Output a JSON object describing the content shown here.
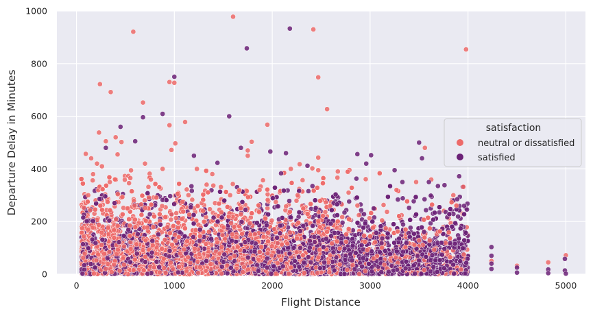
{
  "chart_data": {
    "type": "scatter",
    "title": "",
    "xlabel": "Flight Distance",
    "ylabel": "Departure Delay in Minutes",
    "xlim": [
      -200,
      5200
    ],
    "ylim": [
      0,
      1000
    ],
    "xticks": [
      0,
      1000,
      2000,
      3000,
      4000,
      5000
    ],
    "yticks": [
      0,
      200,
      400,
      600,
      800,
      1000
    ],
    "grid": true,
    "legend": {
      "title": "satisfaction",
      "placement": "center-right",
      "entries": [
        {
          "label": "neutral or dissatisfied",
          "color": "#ed6a69"
        },
        {
          "label": "satisfied",
          "color": "#6b2177"
        }
      ]
    },
    "series": [
      {
        "name": "neutral or dissatisfied",
        "color": "#ed6a69",
        "points": [
          [
            1600,
            978
          ],
          [
            580,
            921
          ],
          [
            2420,
            930
          ],
          [
            240,
            722
          ],
          [
            350,
            692
          ],
          [
            950,
            730
          ],
          [
            1000,
            727
          ],
          [
            2470,
            748
          ],
          [
            2560,
            627
          ],
          [
            680,
            652
          ],
          [
            950,
            566
          ],
          [
            1110,
            578
          ],
          [
            1950,
            568
          ],
          [
            230,
            538
          ],
          [
            400,
            520
          ],
          [
            300,
            505
          ],
          [
            460,
            502
          ],
          [
            1790,
            503
          ],
          [
            1010,
            497
          ],
          [
            3980,
            854
          ],
          [
            3560,
            480
          ],
          [
            95,
            457
          ],
          [
            150,
            440
          ],
          [
            420,
            455
          ],
          [
            970,
            472
          ],
          [
            1750,
            470
          ],
          [
            1750,
            450
          ],
          [
            2470,
            443
          ],
          [
            2190,
            400
          ],
          [
            2280,
            418
          ],
          [
            2410,
            402
          ],
          [
            700,
            420
          ],
          [
            880,
            400
          ],
          [
            210,
            420
          ],
          [
            260,
            410
          ],
          [
            1230,
            400
          ],
          [
            2470,
            395
          ],
          [
            2670,
            390
          ],
          [
            170,
            380
          ],
          [
            550,
            365
          ],
          [
            340,
            350
          ],
          [
            760,
            360
          ],
          [
            1330,
            340
          ],
          [
            1570,
            300
          ],
          [
            1870,
            320
          ],
          [
            2260,
            300
          ],
          [
            2780,
            310
          ],
          [
            3270,
            320
          ],
          [
            3470,
            350
          ],
          [
            3850,
            300
          ],
          [
            4820,
            45
          ],
          [
            5000,
            72
          ],
          [
            4500,
            32
          ],
          [
            4240,
            50
          ],
          [
            120,
            300
          ]
        ],
        "band": {
          "x": [
            50,
            4000
          ],
          "density": 4200,
          "yscale": 95,
          "fade_x": 2700
        }
      },
      {
        "name": "satisfied",
        "color": "#6b2177",
        "points": [
          [
            1000,
            750
          ],
          [
            2180,
            933
          ],
          [
            1740,
            858
          ],
          [
            880,
            609
          ],
          [
            680,
            596
          ],
          [
            1560,
            600
          ],
          [
            450,
            560
          ],
          [
            600,
            505
          ],
          [
            1980,
            466
          ],
          [
            2140,
            460
          ],
          [
            2360,
            412
          ],
          [
            3500,
            500
          ],
          [
            3530,
            440
          ],
          [
            2870,
            456
          ],
          [
            3010,
            452
          ],
          [
            2960,
            420
          ],
          [
            1200,
            450
          ],
          [
            1440,
            423
          ],
          [
            3910,
            372
          ],
          [
            3760,
            338
          ],
          [
            3890,
            285
          ],
          [
            3960,
            260
          ],
          [
            3600,
            350
          ],
          [
            4240,
            103
          ],
          [
            4240,
            70
          ],
          [
            4240,
            40
          ],
          [
            4240,
            20
          ],
          [
            4500,
            25
          ],
          [
            4500,
            6
          ],
          [
            4820,
            18
          ],
          [
            4820,
            4
          ],
          [
            4990,
            58
          ],
          [
            4990,
            14
          ],
          [
            5000,
            2
          ],
          [
            1680,
            480
          ],
          [
            300,
            480
          ],
          [
            2090,
            383
          ],
          [
            2860,
            363
          ],
          [
            3250,
            395
          ],
          [
            3330,
            350
          ]
        ],
        "band": {
          "x": [
            50,
            4000
          ],
          "density": 4200,
          "yscale": 80,
          "fade_x": 0
        }
      }
    ]
  }
}
